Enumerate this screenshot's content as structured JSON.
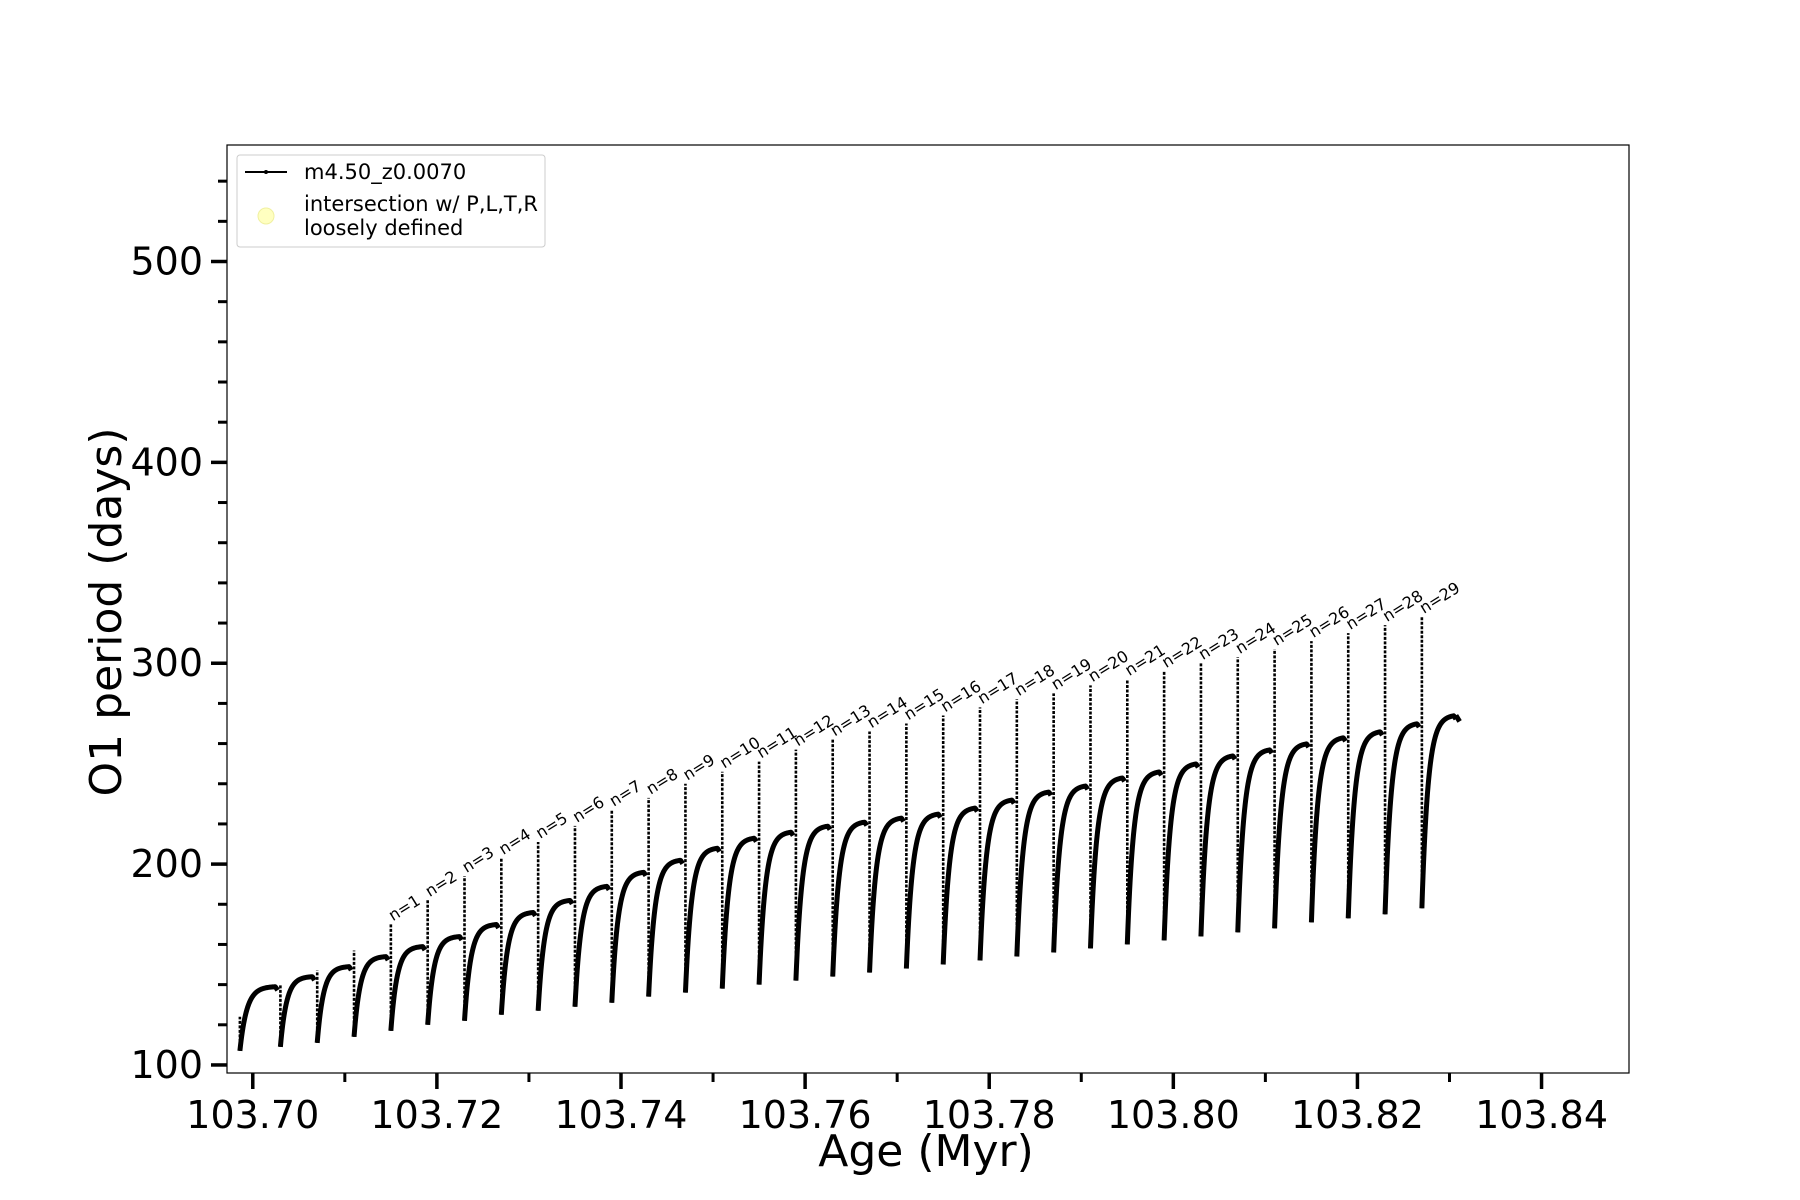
{
  "chart_data": {
    "type": "line",
    "title": "",
    "xlabel": "Age (Myr)",
    "ylabel": "O1 period (days)",
    "xlim": [
      103.6972,
      103.8495
    ],
    "ylim": [
      96,
      558
    ],
    "xticks": [
      103.7,
      103.72,
      103.74,
      103.76,
      103.78,
      103.8,
      103.82,
      103.84
    ],
    "xtick_labels": [
      "103.70",
      "103.72",
      "103.74",
      "103.76",
      "103.78",
      "103.80",
      "103.82",
      "103.84"
    ],
    "yticks": [
      100,
      200,
      300,
      400,
      500
    ],
    "ytick_labels": [
      "100",
      "200",
      "300",
      "400",
      "500"
    ],
    "grid": false,
    "legend_position": "top-left",
    "legend": [
      {
        "label": "m4.50_z0.0070",
        "style": "line-marker",
        "color": "#000000"
      },
      {
        "label": "intersection w/ P,L,T,R\nloosely defined",
        "style": "circle",
        "color": "#ffffc0"
      }
    ],
    "series": [
      {
        "name": "m4.50_z0.0070",
        "color": "#000000",
        "loops": [
          {
            "start": 103.6986,
            "end": 103.7027,
            "low": 107,
            "high": 139,
            "spike": 124
          },
          {
            "start": 103.703,
            "end": 103.7067,
            "low": 109,
            "high": 144,
            "spike": 140
          },
          {
            "start": 103.707,
            "end": 103.7107,
            "low": 111,
            "high": 149,
            "spike": 147
          },
          {
            "start": 103.711,
            "end": 103.7147,
            "low": 114,
            "high": 154,
            "spike": 157
          },
          {
            "start": 103.715,
            "end": 103.7187,
            "low": 117,
            "high": 159,
            "spike": 170
          },
          {
            "start": 103.719,
            "end": 103.7227,
            "low": 120,
            "high": 164,
            "spike": 182
          },
          {
            "start": 103.723,
            "end": 103.7267,
            "low": 122,
            "high": 170,
            "spike": 194
          },
          {
            "start": 103.727,
            "end": 103.7307,
            "low": 125,
            "high": 176,
            "spike": 203
          },
          {
            "start": 103.731,
            "end": 103.7347,
            "low": 127,
            "high": 182,
            "spike": 211
          },
          {
            "start": 103.735,
            "end": 103.7387,
            "low": 129,
            "high": 189,
            "spike": 219
          },
          {
            "start": 103.739,
            "end": 103.7427,
            "low": 131,
            "high": 196,
            "spike": 227
          },
          {
            "start": 103.743,
            "end": 103.7467,
            "low": 134,
            "high": 202,
            "spike": 233
          },
          {
            "start": 103.747,
            "end": 103.7507,
            "low": 136,
            "high": 208,
            "spike": 240
          },
          {
            "start": 103.751,
            "end": 103.7547,
            "low": 138,
            "high": 213,
            "spike": 246
          },
          {
            "start": 103.755,
            "end": 103.7587,
            "low": 140,
            "high": 216,
            "spike": 251
          },
          {
            "start": 103.759,
            "end": 103.7627,
            "low": 142,
            "high": 219,
            "spike": 257
          },
          {
            "start": 103.763,
            "end": 103.7667,
            "low": 144,
            "high": 221,
            "spike": 262
          },
          {
            "start": 103.767,
            "end": 103.7707,
            "low": 146,
            "high": 223,
            "spike": 266
          },
          {
            "start": 103.771,
            "end": 103.7747,
            "low": 148,
            "high": 225,
            "spike": 270
          },
          {
            "start": 103.775,
            "end": 103.7787,
            "low": 150,
            "high": 228,
            "spike": 274
          },
          {
            "start": 103.779,
            "end": 103.7827,
            "low": 152,
            "high": 232,
            "spike": 278
          },
          {
            "start": 103.783,
            "end": 103.7867,
            "low": 154,
            "high": 236,
            "spike": 282
          },
          {
            "start": 103.787,
            "end": 103.7907,
            "low": 156,
            "high": 239,
            "spike": 285
          },
          {
            "start": 103.791,
            "end": 103.7947,
            "low": 158,
            "high": 243,
            "spike": 289
          },
          {
            "start": 103.795,
            "end": 103.7987,
            "low": 160,
            "high": 246,
            "spike": 292
          },
          {
            "start": 103.799,
            "end": 103.8027,
            "low": 162,
            "high": 250,
            "spike": 296
          },
          {
            "start": 103.803,
            "end": 103.8067,
            "low": 164,
            "high": 254,
            "spike": 300
          },
          {
            "start": 103.807,
            "end": 103.8107,
            "low": 166,
            "high": 257,
            "spike": 303
          },
          {
            "start": 103.811,
            "end": 103.8147,
            "low": 168,
            "high": 260,
            "spike": 307
          },
          {
            "start": 103.815,
            "end": 103.8187,
            "low": 171,
            "high": 263,
            "spike": 311
          },
          {
            "start": 103.819,
            "end": 103.8227,
            "low": 173,
            "high": 266,
            "spike": 315
          },
          {
            "start": 103.823,
            "end": 103.8267,
            "low": 175,
            "high": 270,
            "spike": 319
          },
          {
            "start": 103.827,
            "end": 103.8307,
            "low": 178,
            "high": 274,
            "spike": 323
          }
        ]
      }
    ],
    "annotations": [
      {
        "text": "n=1",
        "x": 103.715,
        "y": 170
      },
      {
        "text": "n=2",
        "x": 103.719,
        "y": 182
      },
      {
        "text": "n=3",
        "x": 103.723,
        "y": 194
      },
      {
        "text": "n=4",
        "x": 103.727,
        "y": 203
      },
      {
        "text": "n=5",
        "x": 103.731,
        "y": 211
      },
      {
        "text": "n=6",
        "x": 103.735,
        "y": 219
      },
      {
        "text": "n=7",
        "x": 103.739,
        "y": 227
      },
      {
        "text": "n=8",
        "x": 103.743,
        "y": 233
      },
      {
        "text": "n=9",
        "x": 103.747,
        "y": 240
      },
      {
        "text": "n=10",
        "x": 103.751,
        "y": 246
      },
      {
        "text": "n=11",
        "x": 103.755,
        "y": 251
      },
      {
        "text": "n=12",
        "x": 103.759,
        "y": 257
      },
      {
        "text": "n=13",
        "x": 103.763,
        "y": 262
      },
      {
        "text": "n=14",
        "x": 103.767,
        "y": 266
      },
      {
        "text": "n=15",
        "x": 103.771,
        "y": 270
      },
      {
        "text": "n=16",
        "x": 103.775,
        "y": 274
      },
      {
        "text": "n=17",
        "x": 103.779,
        "y": 278
      },
      {
        "text": "n=18",
        "x": 103.783,
        "y": 282
      },
      {
        "text": "n=19",
        "x": 103.787,
        "y": 285
      },
      {
        "text": "n=20",
        "x": 103.791,
        "y": 289
      },
      {
        "text": "n=21",
        "x": 103.795,
        "y": 292
      },
      {
        "text": "n=22",
        "x": 103.799,
        "y": 296
      },
      {
        "text": "n=23",
        "x": 103.803,
        "y": 300
      },
      {
        "text": "n=24",
        "x": 103.807,
        "y": 303
      },
      {
        "text": "n=25",
        "x": 103.811,
        "y": 307
      },
      {
        "text": "n=26",
        "x": 103.815,
        "y": 311
      },
      {
        "text": "n=27",
        "x": 103.819,
        "y": 315
      },
      {
        "text": "n=28",
        "x": 103.823,
        "y": 319
      },
      {
        "text": "n=29",
        "x": 103.827,
        "y": 323
      }
    ]
  }
}
